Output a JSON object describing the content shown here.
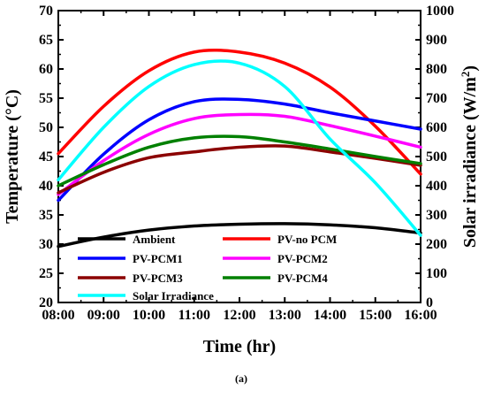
{
  "caption": "(a)",
  "colors": {
    "Ambient": "#000000",
    "PV-no PCM": "#ff0000",
    "PV-PCM1": "#0000ff",
    "PV-PCM2": "#ff00ff",
    "PV-PCM3": "#8b0000",
    "PV-PCM4": "#008000",
    "Solar Irradiance": "#00ffff"
  },
  "chart_data": {
    "type": "line",
    "title": "",
    "xlabel": "Time (hr)",
    "ylabel": "Temperature (°C)",
    "y2label": "Solar irradiance (W/m²)",
    "x_tick_labels": [
      "08:00",
      "09:00",
      "10:00",
      "11:00",
      "12:00",
      "13:00",
      "14:00",
      "15:00",
      "16:00"
    ],
    "x": [
      8,
      9,
      10,
      11,
      12,
      13,
      14,
      15,
      16
    ],
    "ylim": [
      20,
      70
    ],
    "y_ticks": [
      20,
      25,
      30,
      35,
      40,
      45,
      50,
      55,
      60,
      65,
      70
    ],
    "y2lim": [
      0,
      1000
    ],
    "y2_ticks": [
      0,
      100,
      200,
      300,
      400,
      500,
      600,
      700,
      800,
      900,
      1000
    ],
    "grid": false,
    "legend_position": "bottom",
    "series": [
      {
        "name": "Ambient",
        "axis": "left",
        "values": [
          29.6,
          31.2,
          32.4,
          33.1,
          33.4,
          33.5,
          33.3,
          32.8,
          31.9
        ]
      },
      {
        "name": "PV-no PCM",
        "axis": "left",
        "values": [
          45.5,
          53.6,
          59.7,
          62.9,
          62.9,
          61.0,
          56.9,
          50.2,
          42.0
        ]
      },
      {
        "name": "PV-PCM1",
        "axis": "left",
        "values": [
          37.5,
          45.4,
          51.3,
          54.4,
          54.8,
          54.0,
          52.5,
          51.1,
          49.7
        ]
      },
      {
        "name": "PV-PCM2",
        "axis": "left",
        "values": [
          38.5,
          44.3,
          48.8,
          51.5,
          52.2,
          51.9,
          50.3,
          48.5,
          46.6
        ]
      },
      {
        "name": "PV-PCM3",
        "axis": "left",
        "values": [
          38.8,
          42.3,
          44.8,
          45.8,
          46.6,
          46.8,
          45.8,
          44.7,
          43.5
        ]
      },
      {
        "name": "PV-PCM4",
        "axis": "left",
        "values": [
          40.0,
          43.6,
          46.6,
          48.2,
          48.4,
          47.5,
          46.3,
          45.0,
          43.8
        ]
      },
      {
        "name": "Solar Irradiance",
        "axis": "right",
        "values": [
          420,
          600,
          740,
          815,
          820,
          740,
          560,
          410,
          230
        ]
      }
    ]
  }
}
